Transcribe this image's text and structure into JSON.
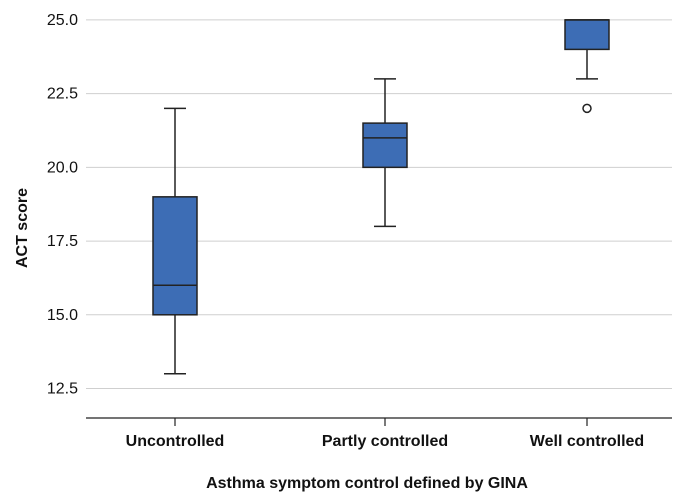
{
  "chart_data": {
    "type": "box",
    "xlabel": "Asthma symptom control defined by GINA",
    "ylabel": "ACT score",
    "ylim": [
      11.5,
      25.2
    ],
    "yticks": [
      "12.5",
      "15.0",
      "17.5",
      "20.0",
      "22.5",
      "25.0"
    ],
    "grid": true,
    "box_color": "#3d6db5",
    "categories": [
      "Uncontrolled",
      "Partly controlled",
      "Well controlled"
    ],
    "boxes": [
      {
        "category": "Uncontrolled",
        "whisker_low": 13,
        "q1": 15,
        "median": 16,
        "q3": 19,
        "whisker_high": 22,
        "outliers": []
      },
      {
        "category": "Partly controlled",
        "whisker_low": 18,
        "q1": 20,
        "median": 21,
        "q3": 21.5,
        "whisker_high": 23,
        "outliers": []
      },
      {
        "category": "Well controlled",
        "whisker_low": 23,
        "q1": 24,
        "median": 25,
        "q3": 25,
        "whisker_high": 25,
        "outliers": [
          22
        ]
      }
    ]
  }
}
